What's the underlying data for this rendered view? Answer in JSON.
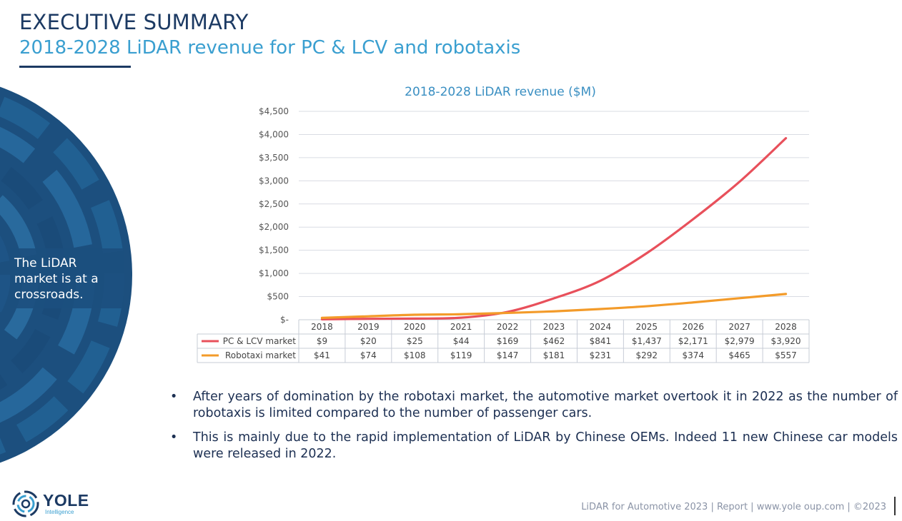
{
  "header": {
    "title": "EXECUTIVE SUMMARY",
    "subtitle": "2018-2028 LiDAR revenue for PC & LCV and robotaxis"
  },
  "side_panel": {
    "text": "The LiDAR\nmarket is at a\ncrossroads."
  },
  "colors": {
    "navy": "#1c3a63",
    "accent_blue": "#3a9fd0",
    "pc_lcv_line": "#e8505b",
    "robotaxi_line": "#f39b2a"
  },
  "chart_data": {
    "type": "line",
    "title": "2018-2028 LiDAR revenue ($M)",
    "x": [
      "2018",
      "2019",
      "2020",
      "2021",
      "2022",
      "2023",
      "2024",
      "2025",
      "2026",
      "2027",
      "2028"
    ],
    "ylim": [
      0,
      4500
    ],
    "yticks": [
      0,
      500,
      1000,
      1500,
      2000,
      2500,
      3000,
      3500,
      4000,
      4500
    ],
    "ytick_labels": [
      "$-",
      "$500",
      "$1,000",
      "$1,500",
      "$2,000",
      "$2,500",
      "$3,000",
      "$3,500",
      "$4,000",
      "$4,500"
    ],
    "grid": true,
    "legend": "data-table",
    "series": [
      {
        "name": "PC & LCV market",
        "color": "#e8505b",
        "values": [
          9,
          20,
          25,
          44,
          169,
          462,
          841,
          1437,
          2171,
          2979,
          3920
        ],
        "labels": [
          "$9",
          "$20",
          "$25",
          "$44",
          "$169",
          "$462",
          "$841",
          "$1,437",
          "$2,171",
          "$2,979",
          "$3,920"
        ]
      },
      {
        "name": "Robotaxi market",
        "color": "#f39b2a",
        "values": [
          41,
          74,
          108,
          119,
          147,
          181,
          231,
          292,
          374,
          465,
          557
        ],
        "labels": [
          "$41",
          "$74",
          "$108",
          "$119",
          "$147",
          "$181",
          "$231",
          "$292",
          "$374",
          "$465",
          "$557"
        ]
      }
    ]
  },
  "bullets": [
    "After years of domination by the robotaxi market, the automotive market overtook it in 2022 as the number of robotaxis is limited compared to the number of passenger cars.",
    "This is mainly due to the rapid implementation of LiDAR by Chinese OEMs. Indeed 11 new Chinese car models were released in 2022."
  ],
  "bullet_symbol": "•",
  "logo": {
    "name": "YOLE",
    "sub": "Intelligence",
    "icon": "yole-logo-icon"
  },
  "footer": {
    "text": "LiDAR for Automotive 2023 | Report | www.yole   oup.com | ©2023"
  }
}
